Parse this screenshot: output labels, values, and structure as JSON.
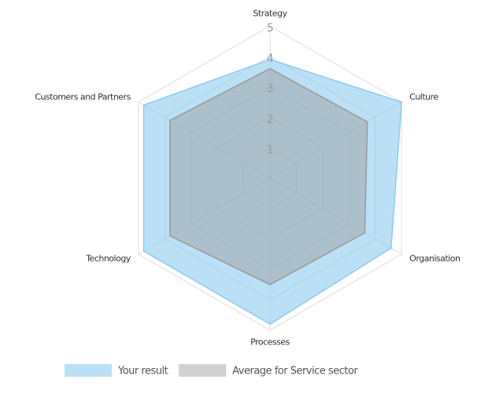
{
  "chart_data": {
    "type": "radar",
    "categories": [
      "Strategy",
      "Culture",
      "Organisation",
      "Processes",
      "Technology",
      "Customers and Partners"
    ],
    "series": [
      {
        "name": "Your result",
        "color": "#8ecbee",
        "values": [
          3.9,
          5.0,
          4.6,
          4.8,
          4.8,
          4.8
        ]
      },
      {
        "name": "Average for Service sector",
        "color": "#9a9a9a",
        "values": [
          3.6,
          3.7,
          3.6,
          3.5,
          3.8,
          3.8
        ]
      }
    ],
    "ylim": [
      0,
      5
    ],
    "yticks": [
      1,
      2,
      3,
      4,
      5
    ],
    "grid": true
  }
}
